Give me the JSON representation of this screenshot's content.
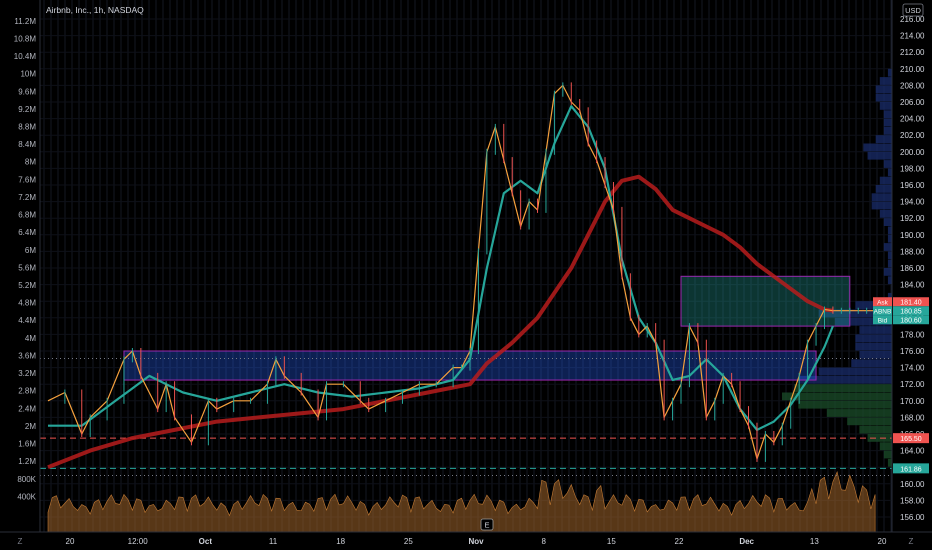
{
  "header": {
    "title": "Airbnb, Inc., 1h, NASDAQ"
  },
  "colors": {
    "background": "#000000",
    "bull": "#26a69a",
    "bear": "#ef5350",
    "ma_fast": "#f6a13d",
    "ma_mid": "#ffb74d",
    "ma_teal": "#26a69a",
    "ma_slow": "#b71c1c",
    "zone_upper": "#26a69a",
    "zone_lower": "#2962ff",
    "zone_border": "#9c27b0",
    "volume": "#a0652a"
  },
  "chart_data": {
    "type": "line",
    "title": "Airbnb, Inc., 1h, NASDAQ",
    "currency": "USD",
    "x_axis": {
      "labels": [
        "20",
        "12:00",
        "Oct",
        "11",
        "18",
        "25",
        "Nov",
        "8",
        "15",
        "22",
        "Dec",
        "13",
        "20"
      ],
      "range": [
        0,
        100
      ]
    },
    "y_axis_right": {
      "range": [
        156,
        216
      ],
      "ticks": [
        "156.00",
        "158.00",
        "160.00",
        "162.00",
        "164.00",
        "166.00",
        "168.00",
        "170.00",
        "172.00",
        "174.00",
        "176.00",
        "178.00",
        "180.00",
        "182.00",
        "184.00",
        "186.00",
        "188.00",
        "190.00",
        "192.00",
        "194.00",
        "196.00",
        "198.00",
        "200.00",
        "202.00",
        "204.00",
        "206.00",
        "208.00",
        "210.00",
        "212.00",
        "214.00",
        "216.00"
      ]
    },
    "y_axis_left": {
      "label": "Volume",
      "range": [
        0,
        11400000
      ],
      "ticks": [
        "400K",
        "800K",
        "1.2M",
        "1.6M",
        "2M",
        "2.4M",
        "2.8M",
        "3.2M",
        "3.6M",
        "4M",
        "4.4M",
        "4.8M",
        "5.2M",
        "5.6M",
        "6M",
        "6.4M",
        "6.8M",
        "7.2M",
        "7.6M",
        "8M",
        "8.4M",
        "8.8M",
        "9.2M",
        "9.6M",
        "10M",
        "10.4M",
        "10.8M",
        "11.2M"
      ]
    },
    "series": [
      {
        "name": "Price",
        "x": [
          0,
          2,
          4,
          5,
          7,
          9,
          10,
          11,
          13,
          14,
          15,
          17,
          19,
          20,
          22,
          24,
          26,
          27,
          28,
          30,
          32,
          33,
          35,
          37,
          38,
          40,
          42,
          44,
          46,
          48,
          49,
          50,
          51,
          52,
          53,
          54,
          55,
          56,
          57,
          58,
          59,
          60,
          61,
          62,
          63,
          64,
          65,
          66,
          67,
          68,
          69,
          70,
          71,
          72,
          73,
          74,
          75,
          76,
          77,
          78,
          79,
          80,
          81,
          82,
          83,
          84,
          85,
          86,
          87,
          88,
          89,
          90,
          91,
          92,
          93,
          94,
          95,
          96,
          97,
          98
        ],
        "y": [
          170,
          171,
          166,
          168,
          170,
          175,
          176,
          173,
          169,
          172,
          168,
          165,
          170,
          169,
          170,
          170,
          172,
          175,
          173,
          171,
          168,
          172,
          172,
          170,
          169,
          170,
          171,
          172,
          172,
          174,
          174,
          176,
          188,
          200,
          203,
          199,
          195,
          191,
          194,
          193,
          200,
          207,
          208,
          206,
          205,
          201,
          199,
          196,
          193,
          185,
          180,
          178,
          179,
          177,
          168,
          170,
          172,
          179,
          177,
          168,
          170,
          173,
          172,
          169,
          167,
          163,
          166,
          165,
          167,
          170,
          173,
          177,
          179,
          181,
          180.85,
          180.85,
          180.85,
          180.85,
          180.85,
          180.85
        ]
      },
      {
        "name": "MA teal",
        "x": [
          0,
          4,
          8,
          12,
          16,
          20,
          24,
          28,
          32,
          36,
          40,
          44,
          48,
          50,
          52,
          54,
          56,
          58,
          60,
          62,
          64,
          66,
          68,
          70,
          72,
          74,
          76,
          78,
          80,
          82,
          84,
          86,
          88,
          90,
          92,
          93
        ],
        "y": [
          167,
          167,
          170,
          173,
          171,
          170,
          171,
          172,
          171,
          170.5,
          171,
          171.5,
          172.5,
          175,
          186,
          195,
          196.5,
          195,
          201,
          205.5,
          203,
          198,
          187,
          180,
          177,
          172.5,
          173,
          175,
          173,
          169,
          166.5,
          167.5,
          169.5,
          172.5,
          176.5,
          179
        ]
      },
      {
        "name": "MA slow",
        "x": [
          0,
          5,
          10,
          15,
          20,
          25,
          30,
          35,
          40,
          45,
          50,
          52,
          55,
          58,
          60,
          62,
          64,
          66,
          68,
          70,
          72,
          74,
          76,
          78,
          80,
          82,
          84,
          86,
          88,
          90,
          92,
          93
        ],
        "y": [
          162,
          164,
          165.5,
          166.5,
          167.5,
          168,
          168.5,
          169,
          170,
          171,
          172,
          174.5,
          177,
          180,
          183,
          186,
          190,
          194,
          196.5,
          197,
          195.5,
          193,
          192,
          191,
          190,
          188.5,
          186.5,
          185,
          183.5,
          182,
          181,
          180.85
        ]
      }
    ],
    "zones": [
      {
        "name": "upper zone",
        "y_range": [
          179,
          185
        ]
      },
      {
        "name": "lower zone",
        "y_range": [
          172.5,
          176
        ]
      }
    ],
    "horizontal_levels": [
      {
        "value": 165.5,
        "label": "165.50",
        "style": "dashed",
        "color": "#ef5350"
      },
      {
        "value": 161.86,
        "label": "161.86",
        "style": "dashed",
        "color": "#26a69a"
      },
      {
        "value": 175.1,
        "label": "",
        "style": "dotted",
        "color": "#787b86"
      },
      {
        "value": 161.0,
        "label": "",
        "style": "dotted",
        "color": "#787b86"
      }
    ],
    "price_labels": [
      {
        "tag": "Ask",
        "value": "181.40",
        "color": "#ef5350"
      },
      {
        "tag": "ABNB",
        "value": "180.85",
        "color": "#26a69a"
      },
      {
        "tag": "Bid",
        "value": "180.60",
        "color": "#26a69a"
      }
    ],
    "grid": true,
    "volume_profile": true,
    "earnings_marker": "E"
  },
  "bottom": {
    "settings_label": "Z",
    "settings2_label": "Z"
  }
}
